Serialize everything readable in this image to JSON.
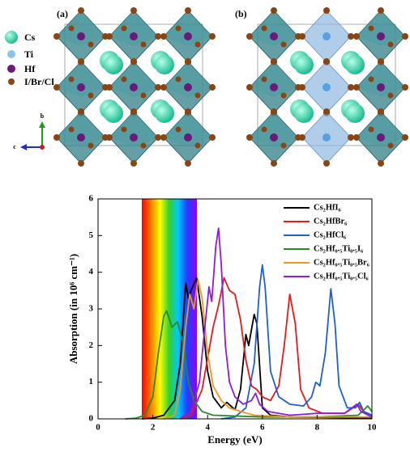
{
  "structure": {
    "panel_labels": [
      "(a)",
      "(b)"
    ],
    "legend": [
      "Cs",
      "Ti",
      "Hf",
      "I/Br/Cl"
    ],
    "axes": [
      "b",
      "c"
    ]
  },
  "chart_data": {
    "type": "line",
    "xlabel": "Energy (eV)",
    "ylabel": "Absorption (in 10⁶ cm⁻¹)",
    "xlim": [
      0,
      10
    ],
    "ylim": [
      0,
      6
    ],
    "xticks": [
      0,
      2,
      4,
      6,
      8,
      10
    ],
    "yticks": [
      0,
      1,
      2,
      3,
      4,
      5,
      6
    ],
    "legend": "upper right",
    "series": [
      {
        "name": "Cs₂HfI₆",
        "color": "#000000",
        "x": [
          1.6,
          2.0,
          2.4,
          2.8,
          3.0,
          3.2,
          3.3,
          3.4,
          3.6,
          3.8,
          4.0,
          4.2,
          4.5,
          4.7,
          5.0,
          5.2,
          5.4,
          5.5,
          5.7,
          5.8,
          6.0,
          6.3,
          7.0,
          10.0
        ],
        "values": [
          0,
          0.02,
          0.1,
          0.5,
          1.5,
          3.7,
          3.3,
          3.5,
          3.85,
          2.8,
          1.3,
          0.6,
          0.3,
          0.45,
          0.25,
          0.8,
          2.3,
          2.0,
          2.85,
          2.6,
          0.3,
          0.1,
          0.05,
          0.02
        ]
      },
      {
        "name": "Cs₂HfBr₆",
        "color": "#e41a1c",
        "x": [
          3.0,
          3.4,
          3.8,
          4.2,
          4.4,
          4.6,
          4.8,
          5.0,
          5.2,
          5.4,
          5.6,
          5.8,
          6.0,
          6.3,
          6.6,
          6.8,
          7.0,
          7.2,
          7.4,
          7.7,
          8.2,
          9.0,
          9.5,
          9.7,
          10.0
        ],
        "values": [
          0,
          0.1,
          0.8,
          2.5,
          3.1,
          3.85,
          3.5,
          3.4,
          2.7,
          1.6,
          0.9,
          0.8,
          0.6,
          0.5,
          0.9,
          2.0,
          3.4,
          2.6,
          0.8,
          0.3,
          0.15,
          0.15,
          0.4,
          0.2,
          0.1
        ]
      },
      {
        "name": "Cs₂HfCl₆",
        "color": "#1f5fd1",
        "x": [
          4.5,
          5.0,
          5.4,
          5.7,
          5.9,
          6.0,
          6.1,
          6.3,
          6.6,
          7.0,
          7.5,
          7.8,
          7.95,
          8.1,
          8.3,
          8.5,
          8.65,
          8.8,
          9.1,
          9.4,
          9.55,
          9.7,
          10.0
        ],
        "values": [
          0,
          0.05,
          0.3,
          1.5,
          3.6,
          4.2,
          3.6,
          1.3,
          0.6,
          0.4,
          0.35,
          0.6,
          1.0,
          0.9,
          1.8,
          3.55,
          2.6,
          0.9,
          0.3,
          0.3,
          0.45,
          0.2,
          0.1
        ]
      },
      {
        "name": "Cs₂Hf₀.₅Ti₀.₅I₆",
        "color": "#2a8a2a",
        "x": [
          1.0,
          1.4,
          1.7,
          2.0,
          2.2,
          2.4,
          2.5,
          2.7,
          2.9,
          3.1,
          3.3,
          3.5,
          3.8,
          4.2,
          6.0,
          8.0,
          9.5,
          9.85,
          10.0
        ],
        "values": [
          0,
          0.02,
          0.1,
          0.6,
          1.8,
          2.8,
          2.95,
          2.5,
          2.65,
          2.1,
          1.0,
          0.5,
          0.2,
          0.1,
          0.05,
          0.05,
          0.1,
          0.35,
          0.2
        ]
      },
      {
        "name": "Cs₂Hf₀.₅Ti₀.₅Br₆",
        "color": "#f0961e",
        "x": [
          2.4,
          2.8,
          3.0,
          3.2,
          3.35,
          3.5,
          3.65,
          3.8,
          4.0,
          4.2,
          4.5,
          4.8,
          5.2,
          5.7,
          7.0,
          10.0
        ],
        "values": [
          0,
          0.1,
          0.8,
          2.5,
          3.4,
          3.0,
          3.8,
          3.3,
          1.8,
          0.9,
          0.5,
          0.3,
          0.2,
          0.1,
          0.05,
          0.05
        ]
      },
      {
        "name": "Cs₂Hf₀.₅Ti₀.₅Cl₆",
        "color": "#8b1be0",
        "x": [
          3.0,
          3.4,
          3.7,
          3.9,
          4.05,
          4.15,
          4.3,
          4.4,
          4.5,
          4.65,
          4.8,
          5.0,
          5.3,
          5.6,
          5.75,
          5.9,
          6.2,
          7.0,
          8.0,
          9.0,
          9.45,
          9.6,
          10.0
        ],
        "values": [
          0,
          0.2,
          1.0,
          2.5,
          3.6,
          3.2,
          4.7,
          5.2,
          4.2,
          2.0,
          1.0,
          0.6,
          0.4,
          0.5,
          0.7,
          0.4,
          0.2,
          0.1,
          0.15,
          0.15,
          0.4,
          0.2,
          0.05
        ]
      }
    ]
  }
}
